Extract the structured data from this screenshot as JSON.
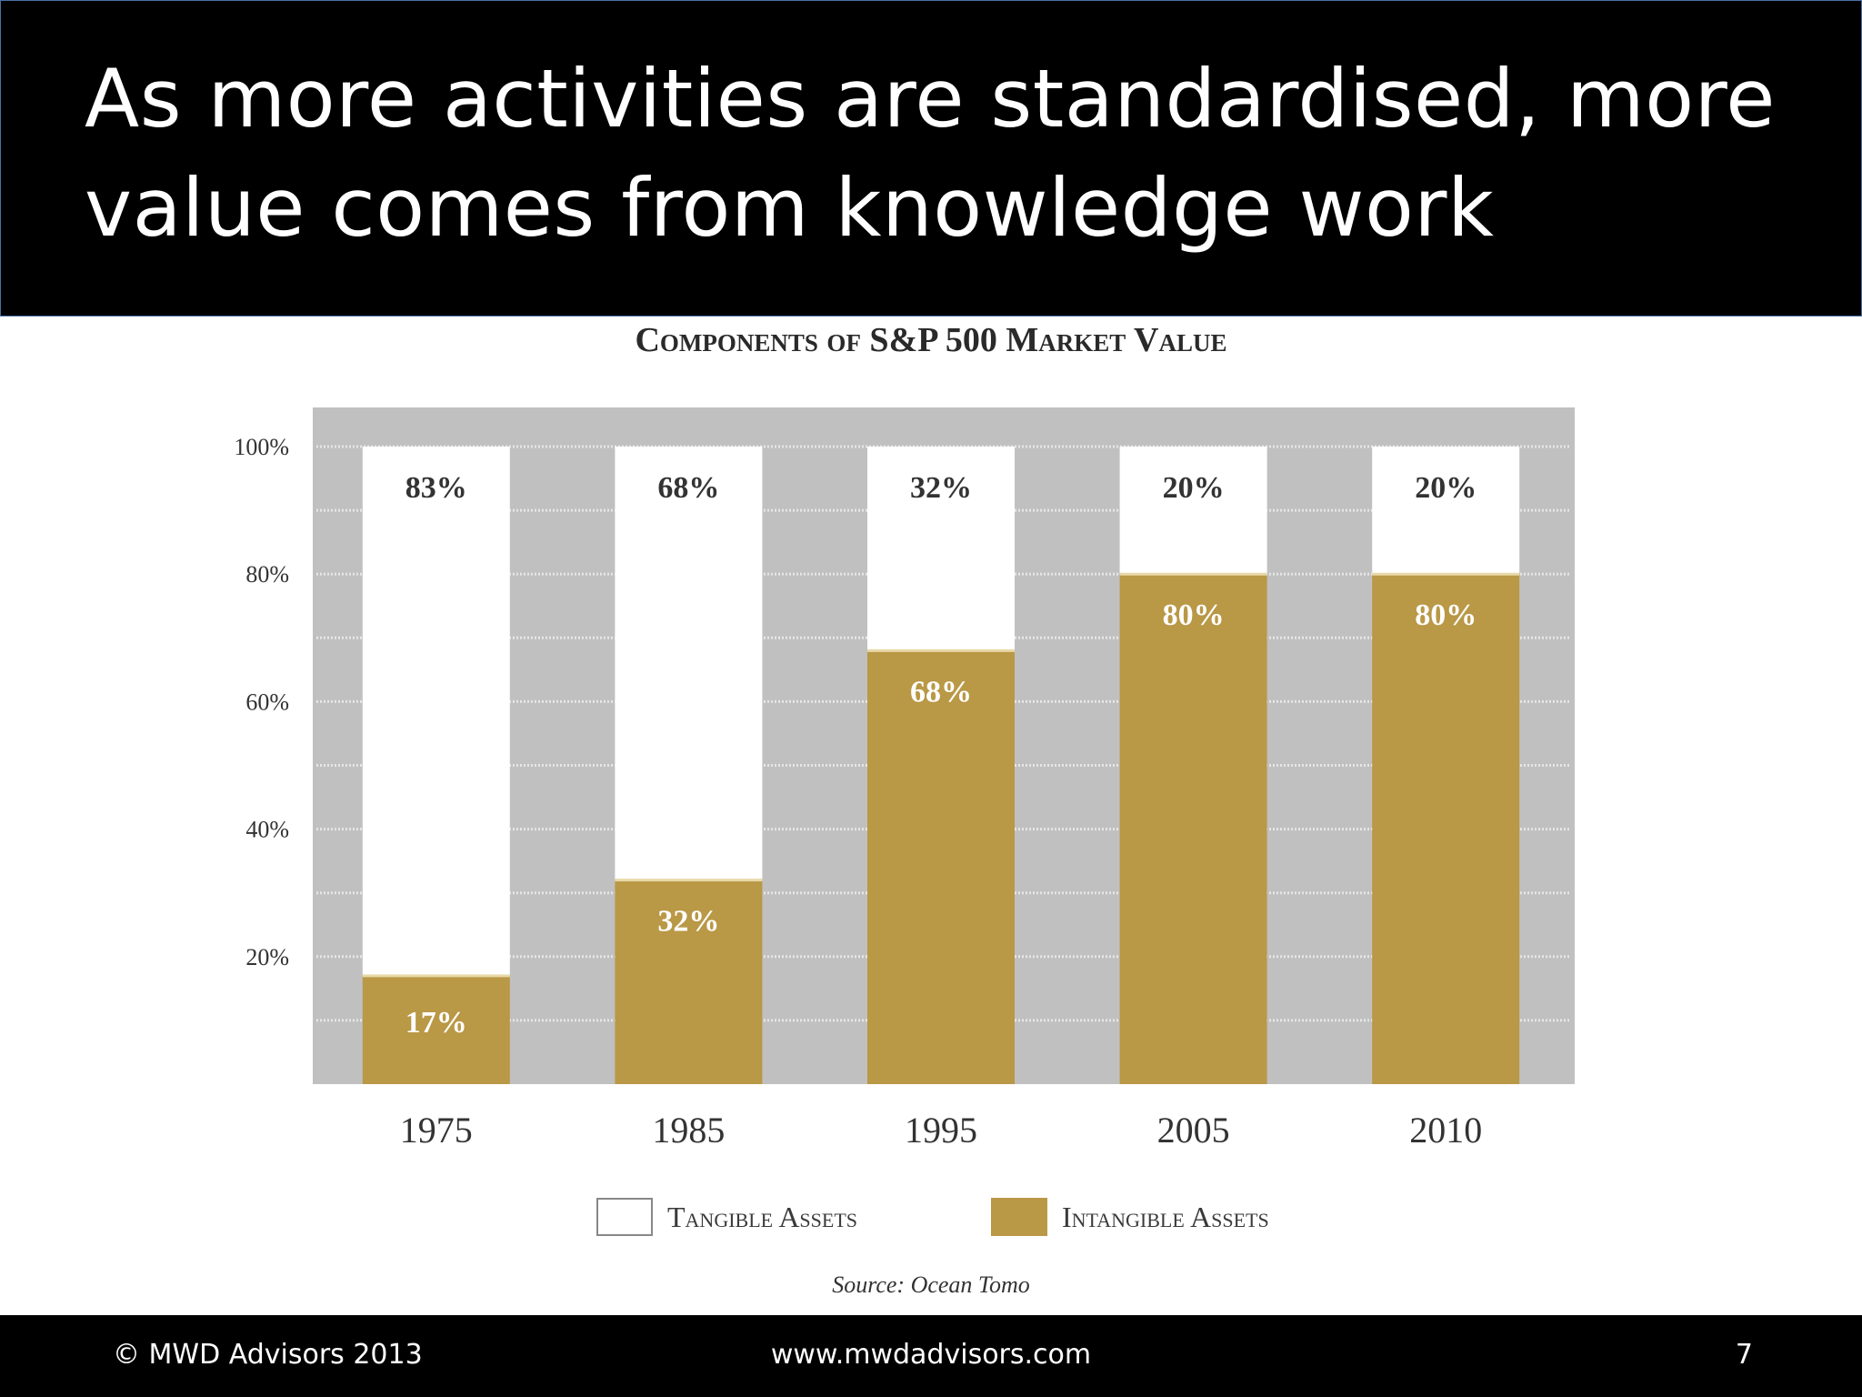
{
  "slide": {
    "title": "As more activities are standardised, more value comes from knowledge work",
    "footer": {
      "copyright": "© MWD Advisors 2013",
      "url": "www.mwdadvisors.com",
      "page_number": "7"
    }
  },
  "colors": {
    "tangible": "#ffffff",
    "intangible": "#b99846",
    "plot_background": "#c0c0c0"
  },
  "chart_data": {
    "type": "bar",
    "stacked": true,
    "title": "Components of S&P 500 Market Value",
    "categories": [
      "1975",
      "1985",
      "1995",
      "2005",
      "2010"
    ],
    "series": [
      {
        "name": "Intangible Assets",
        "values": [
          17,
          32,
          68,
          80,
          80
        ],
        "labels": [
          "17%",
          "32%",
          "68%",
          "80%",
          "80%"
        ]
      },
      {
        "name": "Tangible Assets",
        "values": [
          83,
          68,
          32,
          20,
          20
        ],
        "labels": [
          "83%",
          "68%",
          "32%",
          "20%",
          "20%"
        ]
      }
    ],
    "y_ticks": [
      {
        "value": 20,
        "label": "20%"
      },
      {
        "value": 40,
        "label": "40%"
      },
      {
        "value": 60,
        "label": "60%"
      },
      {
        "value": 80,
        "label": "80%"
      },
      {
        "value": 100,
        "label": "100%"
      }
    ],
    "ylim": [
      0,
      100
    ],
    "grid": true,
    "legend": {
      "position": "bottom",
      "items": [
        {
          "label": "Tangible Assets",
          "color": "#ffffff"
        },
        {
          "label": "Intangible Assets",
          "color": "#b99846"
        }
      ]
    },
    "source": "Source: Ocean Tomo"
  }
}
